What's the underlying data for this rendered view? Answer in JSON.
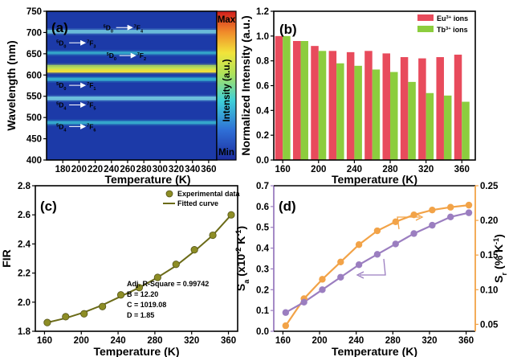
{
  "colors": {
    "eu": "#e84b5c",
    "tb": "#8ccd3e",
    "fit": "#6b6b18",
    "data_marker": "#8d8d25",
    "sa": "#9b7ec0",
    "sr": "#f2a348",
    "heat_bg": "#1c3aa8",
    "eu_text": "#ff3b8a",
    "tb_text": "#8ed12c"
  },
  "chart_data": [
    {
      "type": "heatmap",
      "panel": "(a)",
      "xlabel": "Temperature (K)",
      "ylabel": "Wavelength (nm)",
      "xlim": [
        160,
        370
      ],
      "ylim": [
        400,
        750
      ],
      "x_ticks": [
        "180",
        "200",
        "220",
        "240",
        "260",
        "280",
        "300",
        "320",
        "340",
        "360"
      ],
      "y_ticks": [
        "400",
        "450",
        "500",
        "550",
        "600",
        "650",
        "700",
        "750"
      ],
      "colorbar": {
        "max_label": "Max",
        "min_label": "Min",
        "title": "Intensity (a.u.)"
      },
      "bands": [
        {
          "wavelength": 488,
          "intensity": 0.25,
          "ion": "Tb"
        },
        {
          "wavelength": 545,
          "intensity": 0.45,
          "ion": "Tb"
        },
        {
          "wavelength": 590,
          "intensity": 0.3,
          "ion": "Eu"
        },
        {
          "wavelength": 612,
          "intensity": 0.95,
          "ion": "Eu"
        },
        {
          "wavelength": 619,
          "intensity": 0.55,
          "ion": "Eu"
        },
        {
          "wavelength": 652,
          "intensity": 0.15,
          "ion": "Eu"
        },
        {
          "wavelength": 702,
          "intensity": 0.4,
          "ion": "Eu"
        }
      ],
      "annotations": [
        {
          "base": "D",
          "sup1": "5",
          "sub1": "0",
          "to": "F",
          "sup2": "7",
          "sub2": "4",
          "ion": "Eu",
          "wavelength": 706,
          "temperature": 230
        },
        {
          "base": "D",
          "sup1": "5",
          "sub1": "0",
          "to": "F",
          "sup2": "7",
          "sub2": "3",
          "ion": "Eu",
          "wavelength": 670,
          "temperature": 172
        },
        {
          "base": "D",
          "sup1": "5",
          "sub1": "0",
          "to": "F",
          "sup2": "7",
          "sub2": "2",
          "ion": "Eu",
          "wavelength": 640,
          "temperature": 234
        },
        {
          "base": "D",
          "sup1": "5",
          "sub1": "0",
          "to": "F",
          "sup2": "7",
          "sub2": "1",
          "ion": "Eu",
          "wavelength": 570,
          "temperature": 172
        },
        {
          "base": "D",
          "sup1": "5",
          "sub1": "4",
          "to": "F",
          "sup2": "7",
          "sub2": "5",
          "ion": "Tb",
          "wavelength": 524,
          "temperature": 172
        },
        {
          "base": "D",
          "sup1": "5",
          "sub1": "4",
          "to": "F",
          "sup2": "7",
          "sub2": "6",
          "ion": "Tb",
          "wavelength": 473,
          "temperature": 172
        }
      ]
    },
    {
      "type": "bar",
      "panel": "(b)",
      "xlabel": "Temperature (K)",
      "ylabel": "Normalized Intensity (a.u.)",
      "ylim": [
        0,
        1.2
      ],
      "xlim": [
        150,
        375
      ],
      "x_ticks": [
        "160",
        "200",
        "240",
        "280",
        "320",
        "360"
      ],
      "y_ticks": [
        "0.0",
        "0.2",
        "0.4",
        "0.6",
        "0.8",
        "1.0",
        "1.2"
      ],
      "categories": [
        160,
        180,
        200,
        220,
        240,
        260,
        280,
        300,
        320,
        340,
        360
      ],
      "series": [
        {
          "name": "Eu³⁺ ions",
          "values": [
            1.0,
            0.96,
            0.92,
            0.88,
            0.87,
            0.88,
            0.86,
            0.83,
            0.82,
            0.83,
            0.85
          ]
        },
        {
          "name": "Tb³⁺ ions",
          "values": [
            1.0,
            0.96,
            0.88,
            0.78,
            0.76,
            0.73,
            0.71,
            0.63,
            0.54,
            0.52,
            0.47
          ]
        }
      ],
      "legend_position": "top-right"
    },
    {
      "type": "scatter",
      "panel": "(c)",
      "xlabel": "Temperature (K)",
      "ylabel": "FIR",
      "xlim": [
        150,
        370
      ],
      "ylim": [
        1.8,
        2.8
      ],
      "x_ticks": [
        "160",
        "200",
        "240",
        "280",
        "320",
        "360"
      ],
      "y_ticks": [
        "1.8",
        "2.0",
        "2.2",
        "2.4",
        "2.6",
        "2.8"
      ],
      "x": [
        163,
        183,
        203,
        223,
        243,
        263,
        283,
        303,
        323,
        343,
        363
      ],
      "series": [
        {
          "name": "Experimental data",
          "values": [
            1.86,
            1.9,
            1.92,
            1.97,
            2.05,
            2.1,
            2.17,
            2.26,
            2.36,
            2.46,
            2.6
          ]
        },
        {
          "name": "Fitted curve",
          "values": [
            1.86,
            1.89,
            1.93,
            1.98,
            2.04,
            2.1,
            2.17,
            2.25,
            2.35,
            2.46,
            2.6
          ]
        }
      ],
      "legend_position": "top-right",
      "fit_stats": [
        "Adj. R-Square = 0.99742",
        "B = 12.20",
        "C = 1019.08",
        "D = 1.85"
      ]
    },
    {
      "type": "line",
      "panel": "(d)",
      "xlabel": "Temperature (K)",
      "xlim": [
        150,
        370
      ],
      "x_ticks": [
        "160",
        "200",
        "240",
        "280",
        "320",
        "360"
      ],
      "x": [
        163,
        183,
        203,
        223,
        243,
        263,
        283,
        303,
        323,
        343,
        363
      ],
      "left_axis": {
        "label_main": "S",
        "label_sub": "a",
        "label_rest": " (x10",
        "label_sup": "-2",
        "label_tail": " K",
        "label_sup2": "-1",
        "label_end": ")",
        "ylim": [
          0.0,
          0.7
        ],
        "ticks": [
          "0.0",
          "0.1",
          "0.2",
          "0.3",
          "0.4",
          "0.5",
          "0.6",
          "0.7"
        ]
      },
      "right_axis": {
        "label_main": "S",
        "label_sub": "r",
        "label_rest": " (% K",
        "label_sup": "-1",
        "label_end": ")",
        "ylim": [
          0.04,
          0.25
        ],
        "ticks": [
          "0.05",
          "0.10",
          "0.15",
          "0.20",
          "0.25"
        ]
      },
      "series": [
        {
          "name": "Sa",
          "axis": "left",
          "values": [
            0.09,
            0.14,
            0.2,
            0.26,
            0.32,
            0.37,
            0.42,
            0.47,
            0.51,
            0.55,
            0.57
          ]
        },
        {
          "name": "Sr",
          "axis": "right",
          "values": [
            0.048,
            0.087,
            0.115,
            0.14,
            0.165,
            0.185,
            0.198,
            0.208,
            0.215,
            0.219,
            0.222
          ]
        }
      ]
    }
  ]
}
